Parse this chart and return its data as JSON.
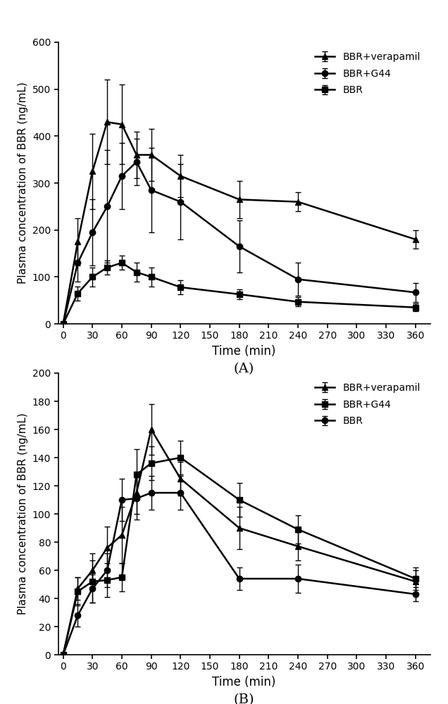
{
  "panel_A": {
    "time": [
      0,
      15,
      30,
      45,
      60,
      75,
      90,
      120,
      180,
      240,
      360
    ],
    "BBR_verapamil": [
      0,
      175,
      325,
      430,
      425,
      360,
      360,
      315,
      265,
      260,
      180
    ],
    "BBR_verapamil_err": [
      0,
      50,
      80,
      90,
      85,
      50,
      55,
      45,
      40,
      20,
      20
    ],
    "BBR_verapamil_marker": "^",
    "BBR_G44": [
      0,
      130,
      195,
      250,
      315,
      345,
      285,
      260,
      165,
      95,
      67
    ],
    "BBR_G44_err": [
      0,
      40,
      70,
      120,
      70,
      50,
      90,
      80,
      55,
      35,
      20
    ],
    "BBR_G44_marker": "o",
    "BBR": [
      0,
      65,
      100,
      120,
      130,
      110,
      100,
      78,
      63,
      47,
      35
    ],
    "BBR_err": [
      0,
      15,
      20,
      15,
      15,
      20,
      20,
      15,
      10,
      10,
      8
    ],
    "BBR_marker": "s",
    "ylabel": "Plasma concentration of BBR (ng/mL)",
    "xlabel": "Time (min)",
    "ylim": [
      0,
      600
    ],
    "yticks": [
      0,
      100,
      200,
      300,
      400,
      500,
      600
    ],
    "xticks": [
      0,
      30,
      60,
      90,
      120,
      150,
      180,
      210,
      240,
      270,
      300,
      330,
      360
    ],
    "legend_labels": [
      "BBR+verapamil",
      "BBR+G44",
      "BBR"
    ],
    "label": "(A)"
  },
  "panel_B": {
    "time": [
      0,
      15,
      30,
      45,
      60,
      75,
      90,
      120,
      180,
      240,
      360
    ],
    "BBR_verapamil": [
      0,
      47,
      60,
      76,
      85,
      115,
      160,
      125,
      90,
      77,
      52
    ],
    "BBR_verapamil_err": [
      0,
      8,
      12,
      15,
      20,
      15,
      18,
      12,
      15,
      10,
      8
    ],
    "BBR_verapamil_marker": "^",
    "BBR_G44": [
      0,
      45,
      52,
      53,
      55,
      128,
      136,
      140,
      110,
      89,
      54
    ],
    "BBR_G44_err": [
      0,
      10,
      15,
      12,
      10,
      18,
      12,
      12,
      12,
      10,
      8
    ],
    "BBR_G44_marker": "s",
    "BBR": [
      0,
      28,
      47,
      60,
      110,
      111,
      115,
      115,
      54,
      54,
      43
    ],
    "BBR_err": [
      0,
      8,
      10,
      12,
      15,
      15,
      12,
      12,
      8,
      10,
      5
    ],
    "BBR_marker": "o",
    "ylabel": "Plasma concentration of BBR (ng/mL)",
    "xlabel": "Time (min)",
    "ylim": [
      0,
      200
    ],
    "yticks": [
      0,
      20,
      40,
      60,
      80,
      100,
      120,
      140,
      160,
      180,
      200
    ],
    "xticks": [
      0,
      30,
      60,
      90,
      120,
      150,
      180,
      210,
      240,
      270,
      300,
      330,
      360
    ],
    "legend_labels": [
      "BBR+verapamil",
      "BBR+G44",
      "BBR"
    ],
    "label": "(B)"
  },
  "line_color": "#000000",
  "bg_color": "#ffffff",
  "markersize": 6,
  "linewidth": 1.8,
  "elinewidth": 1.0,
  "capsize": 3,
  "capthick": 1.0,
  "legend_fontsize": 10,
  "axis_fontsize": 11,
  "xlabel_fontsize": 12,
  "label_fontsize": 14
}
